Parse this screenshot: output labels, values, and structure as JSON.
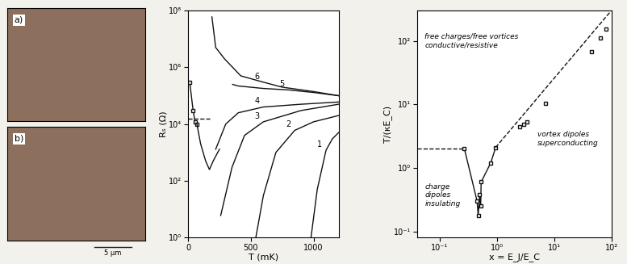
{
  "images": [
    {
      "label": "a)"
    },
    {
      "label": "b)",
      "scale_bar": "5 μm"
    }
  ],
  "chart_data": [
    {
      "type": "line",
      "xlabel": "T (mK)",
      "ylabel": "Rₛ (Ω)",
      "log": "y",
      "xlim": [
        0,
        1200
      ],
      "xticks": [
        0,
        500,
        1000
      ],
      "ylim": [
        1,
        100000000
      ],
      "yticks": [
        {
          "value": 1,
          "label": "10⁰"
        },
        {
          "value": 100,
          "label": "10²"
        },
        {
          "value": 10000,
          "label": "10⁴"
        },
        {
          "value": 1000000,
          "label": "10⁶"
        },
        {
          "value": 100000000,
          "label": "10⁸"
        }
      ],
      "series": [
        {
          "name": "6",
          "color": "#111111",
          "line_style": "solid",
          "x": [
            190,
            220,
            290,
            420,
            600,
            750,
            1000,
            1200
          ],
          "values": [
            60000000,
            5000000,
            2000000,
            500000,
            300000,
            200000,
            140000,
            100000
          ]
        },
        {
          "name": "5",
          "color": "#111111",
          "line_style": "solid",
          "x": [
            355,
            400,
            600,
            800,
            1000,
            1200
          ],
          "values": [
            250000,
            220000,
            180000,
            160000,
            130000,
            100000
          ]
        },
        {
          "name": "4",
          "color": "#111111",
          "line_style": "solid",
          "x": [
            220,
            300,
            400,
            600,
            900,
            1200
          ],
          "values": [
            1300,
            10000,
            25000,
            40000,
            50000,
            60000
          ]
        },
        {
          "name": "3",
          "color": "#111111",
          "line_style": "solid",
          "x": [
            260,
            350,
            450,
            600,
            900,
            1200
          ],
          "values": [
            6,
            300,
            4000,
            12000,
            30000,
            50000
          ]
        },
        {
          "name": "2",
          "color": "#111111",
          "line_style": "solid",
          "x": [
            540,
            600,
            700,
            850,
            1000,
            1200
          ],
          "values": [
            1,
            30,
            1000,
            6000,
            12000,
            20000
          ]
        },
        {
          "name": "1",
          "color": "#111111",
          "line_style": "solid",
          "x": [
            980,
            1030,
            1100,
            1150,
            1200
          ],
          "values": [
            1,
            50,
            1200,
            3000,
            5000
          ]
        },
        {
          "color": "#111111",
          "line_style": "solid",
          "marker": "square",
          "x": [
            13,
            40,
            55,
            70
          ],
          "values": [
            300000,
            30000,
            12000,
            10000
          ]
        },
        {
          "color": "#111111",
          "line_style": "solid",
          "x": [
            70,
            100,
            140,
            170,
            200,
            250
          ],
          "values": [
            10000,
            2000,
            500,
            250,
            500,
            1300
          ]
        },
        {
          "color": "#111111",
          "line_style": "dashed",
          "x": [
            0,
            170
          ],
          "values": [
            16000,
            16000
          ]
        }
      ]
    },
    {
      "type": "line",
      "xlabel": "x = E_J/E_C",
      "ylabel": "T/(κE_C)",
      "log": true,
      "xlim": [
        0.04,
        100
      ],
      "xticks": [
        {
          "value": 0.1,
          "label": "10⁻¹"
        },
        {
          "value": 1,
          "label": "10⁰"
        },
        {
          "value": 10,
          "label": "10¹"
        },
        {
          "value": 100,
          "label": "10²"
        }
      ],
      "ylim": [
        0.08,
        300
      ],
      "yticks": [
        {
          "value": 0.1,
          "label": "10⁻¹"
        },
        {
          "value": 1,
          "label": "10⁰"
        },
        {
          "value": 10,
          "label": "10¹"
        },
        {
          "value": 100,
          "label": "10²"
        }
      ],
      "annotations": [
        "free charges/free vortices\nconductive/resistive",
        "vortex dipoles\nsuperconducting",
        "charge\ndipoles\ninsulating"
      ],
      "series": [
        {
          "color": "#111111",
          "line_style": "dashed",
          "x": [
            0.04,
            0.27
          ],
          "values": [
            2.0,
            2.0
          ]
        },
        {
          "color": "#111111",
          "line_style": "solid",
          "marker": "square",
          "x": [
            0.27,
            0.45,
            0.47,
            0.5,
            0.52,
            0.53,
            0.78,
            0.95
          ],
          "values": [
            2.0,
            0.3,
            0.18,
            0.38,
            0.25,
            0.6,
            1.2,
            2.1
          ]
        },
        {
          "color": "#111111",
          "line_style": "none",
          "marker": "square",
          "x": [
            2.5,
            2.9,
            3.3,
            7,
            45,
            65,
            82
          ],
          "values": [
            4.4,
            4.8,
            5.3,
            10.3,
            68,
            110,
            155
          ]
        },
        {
          "color": "#111111",
          "line_style": "dashed",
          "x": [
            0.95,
            100
          ],
          "values": [
            2.1,
            300
          ]
        }
      ]
    }
  ]
}
